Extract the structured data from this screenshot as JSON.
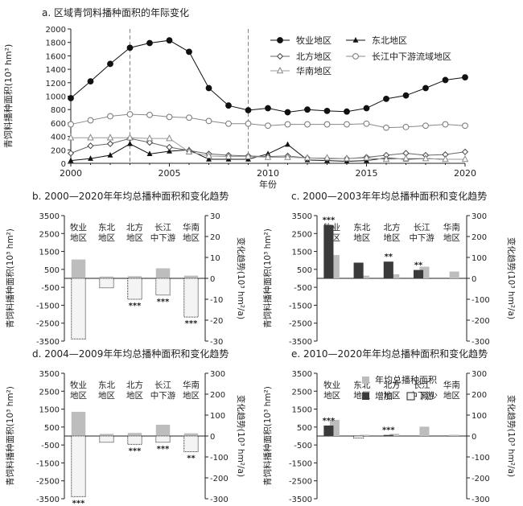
{
  "chart_data": [
    {
      "id": "a",
      "type": "line",
      "title": "a. 区域青饲料播种面积的年际变化",
      "xlabel": "年份",
      "ylabel": "青饲料播种面积(10³ hm²)",
      "xlim": [
        2000,
        2020
      ],
      "ylim": [
        0,
        2000
      ],
      "xticks": [
        2000,
        2005,
        2010,
        2015,
        2020
      ],
      "yticks": [
        0,
        200,
        400,
        600,
        800,
        1000,
        1200,
        1400,
        1600,
        1800,
        2000
      ],
      "reference_lines_x": [
        2003,
        2009
      ],
      "legend_position": "top-right",
      "x": [
        2000,
        2001,
        2002,
        2003,
        2004,
        2005,
        2006,
        2007,
        2008,
        2009,
        2010,
        2011,
        2012,
        2013,
        2014,
        2015,
        2016,
        2017,
        2018,
        2019,
        2020
      ],
      "series": [
        {
          "name": "牧业地区",
          "marker": "filled-circle",
          "values": [
            970,
            1220,
            1480,
            1720,
            1790,
            1830,
            1660,
            1120,
            860,
            790,
            820,
            760,
            800,
            780,
            770,
            820,
            960,
            1010,
            1120,
            1240,
            1280
          ]
        },
        {
          "name": "东北地区",
          "marker": "filled-triangle",
          "values": [
            40,
            70,
            120,
            290,
            140,
            180,
            200,
            60,
            60,
            60,
            140,
            280,
            50,
            40,
            30,
            40,
            80,
            60,
            70,
            60,
            60
          ]
        },
        {
          "name": "北方地区",
          "marker": "open-diamond",
          "values": [
            150,
            260,
            290,
            370,
            310,
            240,
            190,
            140,
            120,
            110,
            100,
            110,
            80,
            70,
            70,
            90,
            120,
            150,
            120,
            130,
            170
          ]
        },
        {
          "name": "长江中下游流域地区",
          "marker": "open-circle",
          "values": [
            580,
            640,
            700,
            730,
            720,
            690,
            680,
            630,
            590,
            590,
            560,
            580,
            580,
            580,
            580,
            590,
            530,
            540,
            560,
            580,
            560
          ]
        },
        {
          "name": "华南地区",
          "marker": "open-triangle",
          "values": [
            380,
            380,
            380,
            380,
            370,
            370,
            170,
            110,
            100,
            100,
            90,
            90,
            80,
            80,
            70,
            80,
            60,
            70,
            70,
            60,
            60
          ]
        }
      ]
    },
    {
      "id": "b",
      "type": "bar",
      "title": "b. 2000—2020年年均总播种面积和变化趋势",
      "categories": [
        "牧业\n地区",
        "东北\n地区",
        "北方\n地区",
        "长江\n中下游",
        "华南\n地区"
      ],
      "ylabel": "青饲料播种面积(10³ hm²)",
      "y2label": "变化趋势(10³ hm²/a)",
      "ylim": [
        -3500,
        3500
      ],
      "yticks": [
        -3500,
        -2500,
        -1500,
        -500,
        500,
        1500,
        2500,
        3500
      ],
      "y2lim": [
        -30,
        30
      ],
      "y2ticks": [
        -30,
        -20,
        -10,
        0,
        10,
        20,
        30
      ],
      "area": [
        1050,
        100,
        120,
        560,
        150
      ],
      "trend": [
        -29,
        -4.5,
        -10,
        -8,
        -18.5
      ],
      "significance": [
        "",
        "",
        "***",
        "***",
        "***"
      ]
    },
    {
      "id": "c",
      "type": "bar",
      "title": "c. 2000—2003年年均总播种面积和变化趋势",
      "categories": [
        "牧业\n地区",
        "东北\n地区",
        "北方\n地区",
        "长江\n中下游",
        "华南\n地区"
      ],
      "ylabel": "青饲料播种面积(10³ hm²)",
      "y2label": "变化趋势(10³ hm²/a)",
      "ylim": [
        -3500,
        3500
      ],
      "yticks": [
        -3500,
        -2500,
        -1500,
        -500,
        500,
        1500,
        2500,
        3500
      ],
      "y2lim": [
        -300,
        300
      ],
      "y2ticks": [
        -300,
        -200,
        -100,
        0,
        100,
        200,
        300
      ],
      "area": [
        1300,
        150,
        230,
        650,
        380
      ],
      "trend": [
        255,
        75,
        80,
        40,
        0
      ],
      "significance": [
        "***",
        "",
        "**",
        "**",
        ""
      ]
    },
    {
      "id": "d",
      "type": "bar",
      "title": "d. 2004—2009年年均总播种面积和变化趋势",
      "categories": [
        "牧业\n地区",
        "东北\n地区",
        "北方\n地区",
        "长江\n中下游",
        "华南\n地区"
      ],
      "ylabel": "青饲料播种面积(10³ hm²)",
      "y2label": "变化趋势(10³ hm²/a)",
      "ylim": [
        -3500,
        3500
      ],
      "yticks": [
        -3500,
        -2500,
        -1500,
        -500,
        500,
        1500,
        2500,
        3500
      ],
      "y2lim": [
        -300,
        300
      ],
      "y2ticks": [
        -300,
        -200,
        -100,
        0,
        100,
        200,
        300
      ],
      "area": [
        1350,
        120,
        170,
        630,
        150
      ],
      "trend": [
        -290,
        -30,
        -40,
        -30,
        -75
      ],
      "significance": [
        "***",
        "",
        "***",
        "***",
        "**"
      ]
    },
    {
      "id": "e",
      "type": "bar",
      "title": "e. 2010—2020年年均总播种面积和变化趋势",
      "categories": [
        "牧业\n地区",
        "东北\n地区",
        "北方\n地区",
        "长江\n中下游",
        "华南\n地区"
      ],
      "ylabel": "青饲料播种面积(10³ hm²)",
      "y2label": "变化趋势(10³ hm²/a)",
      "ylim": [
        -3500,
        3500
      ],
      "yticks": [
        -3500,
        -2500,
        -1500,
        -500,
        500,
        1500,
        2500,
        3500
      ],
      "y2lim": [
        -300,
        300
      ],
      "y2ticks": [
        -300,
        -200,
        -100,
        0,
        100,
        200,
        300
      ],
      "area": [
        900,
        70,
        120,
        520,
        70
      ],
      "trend": [
        50,
        -10,
        5,
        0,
        0
      ],
      "significance": [
        "***",
        "",
        "***",
        "",
        ""
      ],
      "legend": {
        "area": "年均总播种面积",
        "increase": "增加",
        "decrease": "减少"
      }
    }
  ],
  "colors": {
    "axis": "#222222",
    "line": "#111111",
    "area_bar": "#bdbdbd",
    "increase_bar": "#3a3a3a",
    "decrease_fill": "#f4f4f4",
    "grid": "#bbbbbb",
    "open_marker": "#ffffff"
  }
}
